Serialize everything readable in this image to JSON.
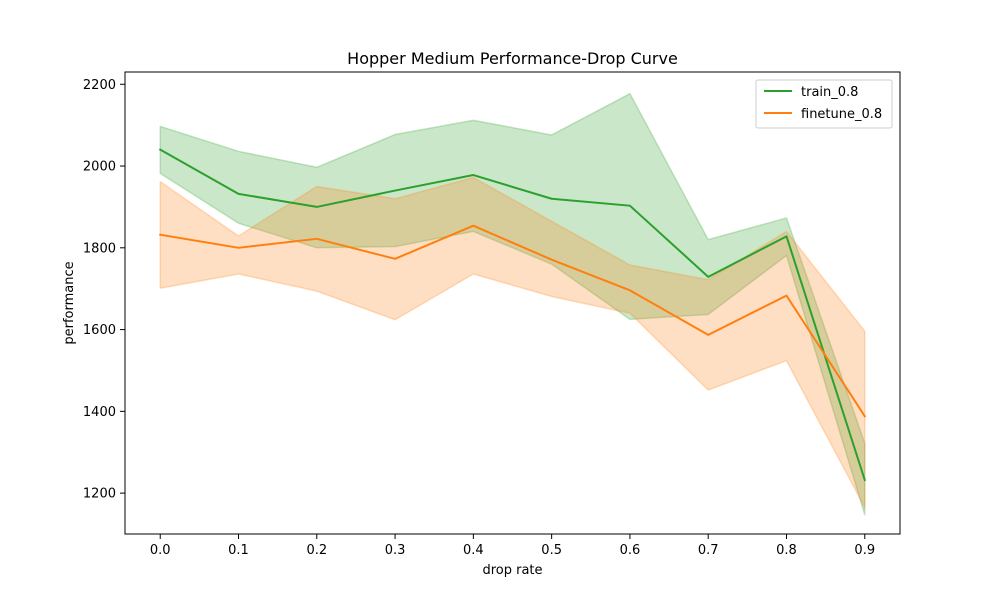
{
  "chart_data": {
    "type": "line",
    "title": "Hopper Medium Performance-Drop Curve",
    "xlabel": "drop rate",
    "ylabel": "performance",
    "x": [
      0.0,
      0.1,
      0.2,
      0.3,
      0.4,
      0.5,
      0.6,
      0.7,
      0.8,
      0.9
    ],
    "x_ticks": [
      "0.0",
      "0.1",
      "0.2",
      "0.3",
      "0.4",
      "0.5",
      "0.6",
      "0.7",
      "0.8",
      "0.9"
    ],
    "y_ticks": [
      "1200",
      "1400",
      "1600",
      "1800",
      "2000",
      "2200"
    ],
    "xlim": [
      -0.045,
      0.945
    ],
    "ylim": [
      1100,
      2230
    ],
    "grid": false,
    "legend_position": "top-right",
    "series": [
      {
        "name": "train_0.8",
        "color": "#2ca02c",
        "band_color": "#2ca02c",
        "band_opacity": 0.25,
        "values": [
          2040,
          1932,
          1900,
          1940,
          1978,
          1920,
          1903,
          1729,
          1828,
          1232
        ],
        "upper": [
          2097,
          2036,
          1997,
          2077,
          2112,
          2076,
          2177,
          1820,
          1873,
          1322
        ],
        "lower": [
          1982,
          1860,
          1800,
          1803,
          1840,
          1760,
          1625,
          1637,
          1781,
          1147
        ]
      },
      {
        "name": "finetune_0.8",
        "color": "#ff7f0e",
        "band_color": "#ff7f0e",
        "band_opacity": 0.25,
        "values": [
          1832,
          1800,
          1822,
          1773,
          1854,
          1771,
          1696,
          1587,
          1683,
          1388
        ],
        "upper": [
          1962,
          1829,
          1950,
          1920,
          1972,
          1865,
          1758,
          1722,
          1840,
          1596
        ],
        "lower": [
          1701,
          1736,
          1694,
          1624,
          1736,
          1681,
          1640,
          1452,
          1524,
          1165
        ]
      }
    ]
  }
}
